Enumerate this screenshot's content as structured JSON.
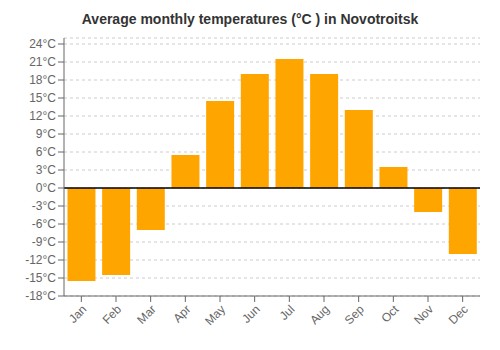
{
  "chart_data": {
    "type": "bar",
    "title": "Average monthly temperatures (°C ) in Novotroitsk",
    "categories": [
      "Jan",
      "Feb",
      "Mar",
      "Apr",
      "May",
      "Jun",
      "Jul",
      "Aug",
      "Sep",
      "Oct",
      "Nov",
      "Dec"
    ],
    "values": [
      -15.5,
      -14.5,
      -7.0,
      5.5,
      14.5,
      19.0,
      21.5,
      19.0,
      13.0,
      3.5,
      -4.0,
      -11.0
    ],
    "color": "#FFA500",
    "ylim": [
      -18,
      25
    ],
    "yticks": [
      {
        "value": -18,
        "label": "-18°C"
      },
      {
        "value": -15,
        "label": "-15°C"
      },
      {
        "value": -12,
        "label": "-12°C"
      },
      {
        "value": -9,
        "label": "-9°C"
      },
      {
        "value": -6,
        "label": "-6°C"
      },
      {
        "value": -3,
        "label": "-3°C"
      },
      {
        "value": 0,
        "label": "0°C"
      },
      {
        "value": 3,
        "label": "3°C"
      },
      {
        "value": 6,
        "label": "6°C"
      },
      {
        "value": 9,
        "label": "9°C"
      },
      {
        "value": 12,
        "label": "12°C"
      },
      {
        "value": 15,
        "label": "15°C"
      },
      {
        "value": 18,
        "label": "18°C"
      },
      {
        "value": 21,
        "label": "21°C"
      },
      {
        "value": 24,
        "label": "24°C"
      }
    ],
    "grid": true
  }
}
